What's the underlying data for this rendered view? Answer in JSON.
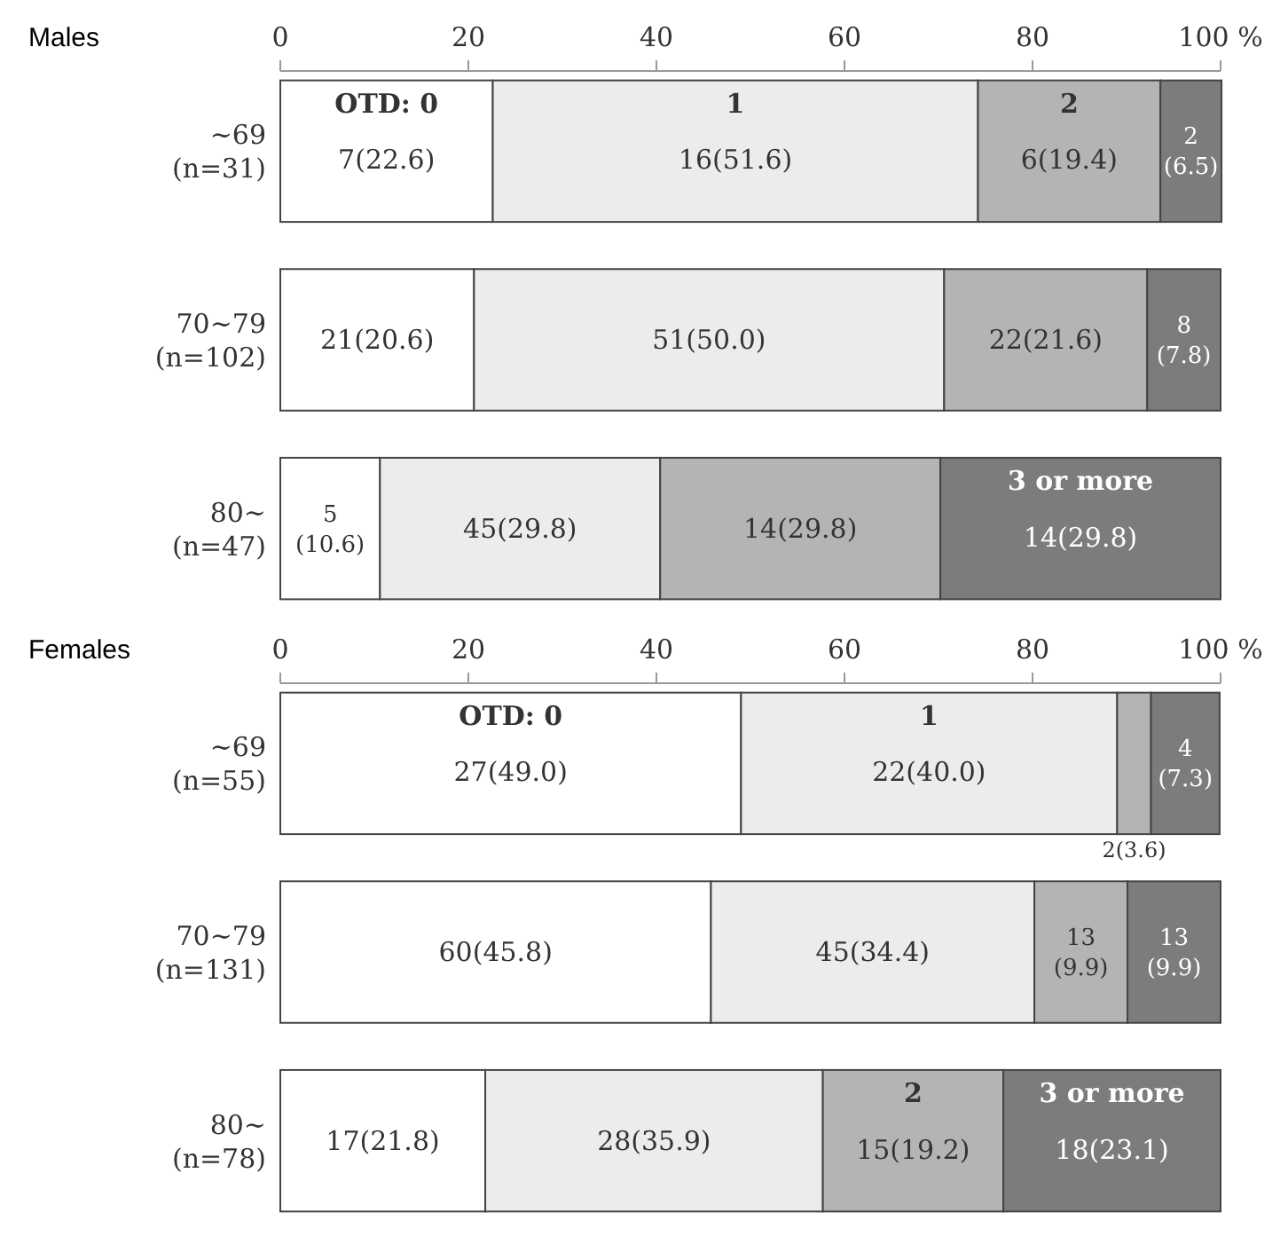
{
  "chart_data": [
    {
      "type": "bar",
      "title": "Males",
      "orientation": "horizontal",
      "stacked": true,
      "categories": [
        "∼69 (n=31)",
        "70∼79 (n=102)",
        "80∼ (n=47)"
      ],
      "xlim": [
        0,
        100
      ],
      "xticks": [
        0,
        20,
        40,
        60,
        80,
        {
          "value": 100,
          "label": "100 %"
        }
      ],
      "series": [
        {
          "name": "OTD: 0",
          "color": "#ffffff",
          "values": [
            22.6,
            20.6,
            10.6
          ],
          "value_labels": [
            "7(22.6)",
            "21(20.6)",
            "5(10.6)"
          ]
        },
        {
          "name": "1",
          "color": "#ececec",
          "values": [
            51.6,
            50.0,
            29.8
          ],
          "value_labels": [
            "16(51.6)",
            "51(50.0)",
            "45(29.8)"
          ]
        },
        {
          "name": "2",
          "color": "#b4b4b4",
          "values": [
            19.4,
            21.6,
            29.8
          ],
          "value_labels": [
            "6(19.4)",
            "22(21.6)",
            "14(29.8)"
          ]
        },
        {
          "name": "3 or more",
          "color": "#7c7c7c",
          "values": [
            6.5,
            7.8,
            29.8
          ],
          "value_labels": [
            "2(6.5)",
            "8(7.8)",
            "14(29.8)"
          ]
        }
      ]
    },
    {
      "type": "bar",
      "title": "Females",
      "orientation": "horizontal",
      "stacked": true,
      "categories": [
        "∼69 (n=55)",
        "70∼79 (n=131)",
        "80∼ (n=78)"
      ],
      "xlim": [
        0,
        100
      ],
      "xticks": [
        0,
        20,
        40,
        60,
        80,
        {
          "value": 100,
          "label": "100 %"
        }
      ],
      "series": [
        {
          "name": "OTD: 0",
          "color": "#ffffff",
          "values": [
            49.0,
            45.8,
            21.8
          ],
          "value_labels": [
            "27(49.0)",
            "60(45.8)",
            "17(21.8)"
          ]
        },
        {
          "name": "1",
          "color": "#ececec",
          "values": [
            40.0,
            34.4,
            35.9
          ],
          "value_labels": [
            "22(40.0)",
            "45(34.4)",
            "28(35.9)"
          ]
        },
        {
          "name": "2",
          "color": "#b4b4b4",
          "values": [
            3.6,
            9.9,
            19.2
          ],
          "value_labels": [
            "2(3.6)",
            "13(9.9)",
            "15(19.2)"
          ]
        },
        {
          "name": "3 or more",
          "color": "#7c7c7c",
          "values": [
            7.3,
            9.9,
            23.1
          ],
          "value_labels": [
            "4(7.3)",
            "13(9.9)",
            "18(23.1)"
          ]
        }
      ]
    }
  ]
}
